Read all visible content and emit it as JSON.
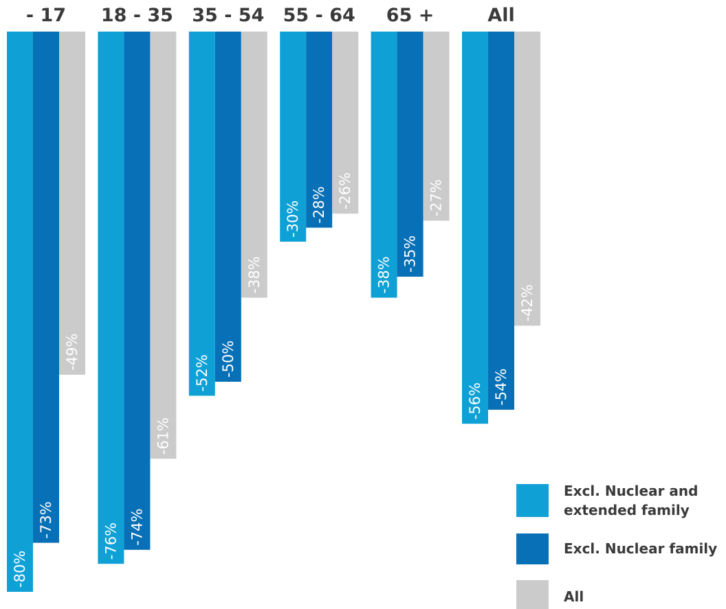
{
  "chart_data": {
    "type": "bar",
    "orientation": "vertical-hanging",
    "categories": [
      "- 17",
      "18 - 35",
      "35 - 54",
      "55 - 64",
      "65 +",
      "All"
    ],
    "series": [
      {
        "name": "Excl. Nuclear and extended family",
        "color": "#0fa1d6",
        "values": [
          -80,
          -76,
          -52,
          -30,
          -38,
          -56
        ],
        "labels": [
          "-80%",
          "-76%",
          "-52%",
          "-30%",
          "-38%",
          "-56%"
        ]
      },
      {
        "name": "Excl. Nuclear family",
        "color": "#0870b6",
        "values": [
          -73,
          -74,
          -50,
          -28,
          -35,
          -54
        ],
        "labels": [
          "-73%",
          "-74%",
          "-50%",
          "-28%",
          "-35%",
          "-54%"
        ]
      },
      {
        "name": "All",
        "color": "#cbcbcb",
        "values": [
          -49,
          -61,
          -38,
          -26,
          -27,
          -42
        ],
        "labels": [
          "-49%",
          "-61%",
          "-38%",
          "-26%",
          "-27%",
          "-42%"
        ]
      }
    ],
    "legend_lines": [
      [
        "Excl. Nuclear and",
        "extended family"
      ],
      [
        "Excl. Nuclear family"
      ],
      [
        "All"
      ]
    ],
    "category_label_color": "#3a3a3a",
    "ylim": [
      -80,
      0
    ],
    "grid": false,
    "legend_position": "bottom-right",
    "title": "",
    "xlabel": "",
    "ylabel": ""
  }
}
